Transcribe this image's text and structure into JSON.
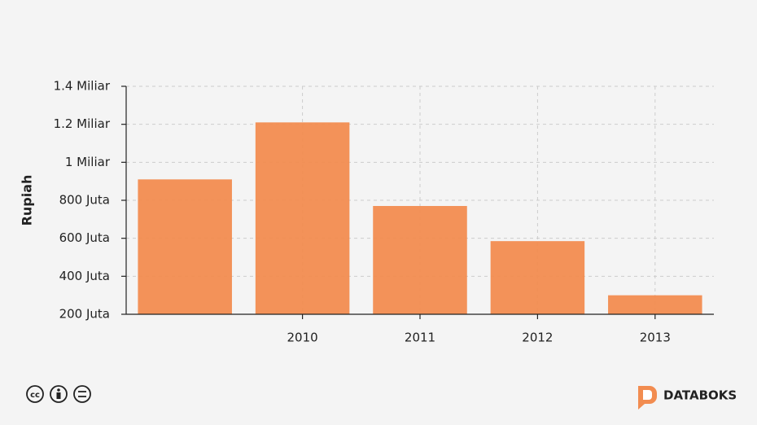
{
  "chart_data": {
    "type": "bar",
    "y_label": "Rupiah",
    "categories": [
      null,
      "2010",
      "2011",
      "2012",
      "2013"
    ],
    "values": [
      910000000,
      1210000000,
      770000000,
      585000000,
      300000000
    ],
    "color": "#f28c50",
    "ylim": [
      200000000,
      1400000000
    ],
    "yticks": [
      {
        "value": 200000000,
        "label": "200 Juta"
      },
      {
        "value": 400000000,
        "label": "400 Juta"
      },
      {
        "value": 600000000,
        "label": "600 Juta"
      },
      {
        "value": 800000000,
        "label": "800 Juta"
      },
      {
        "value": 1000000000,
        "label": "1 Miliar"
      },
      {
        "value": 1200000000,
        "label": "1.2 Miliar"
      },
      {
        "value": 1400000000,
        "label": "1.4 Miliar"
      }
    ],
    "grid": true,
    "brand": "DATABOKS"
  }
}
